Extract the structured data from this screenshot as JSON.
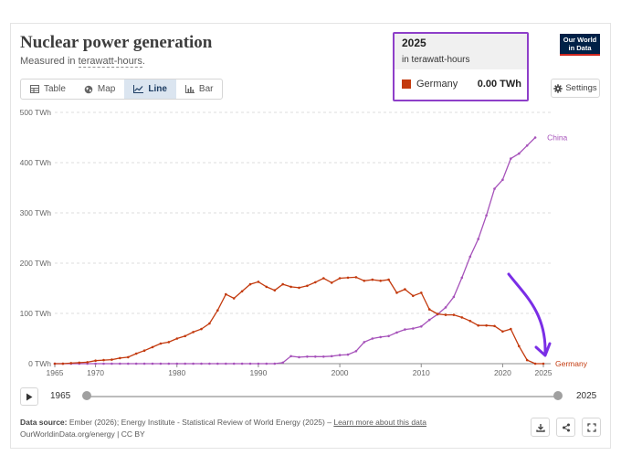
{
  "header": {
    "title": "Nuclear power generation",
    "subtitle_prefix": "Measured in ",
    "subtitle_unit": "terawatt-hours",
    "subtitle_suffix": "."
  },
  "tabs": [
    {
      "label": "Table",
      "icon": "table-icon"
    },
    {
      "label": "Map",
      "icon": "globe-icon"
    },
    {
      "label": "Line",
      "icon": "line-chart-icon"
    },
    {
      "label": "Bar",
      "icon": "bar-chart-icon"
    }
  ],
  "active_tab": "Line",
  "settings_label": "Settings",
  "logo": {
    "line1": "Our World",
    "line2": "in Data"
  },
  "tooltip": {
    "year": "2025",
    "unit": "in terawatt-hours",
    "country": "Germany",
    "value": "0.00 TWh"
  },
  "timeline": {
    "start_label": "1965",
    "end_label": "2025",
    "start": 1965,
    "end": 2025
  },
  "footer": {
    "source_label": "Data source:",
    "source_text": "Ember (2026); Energy Institute - Statistical Review of World Energy (2025) –",
    "source_link": "Learn more about this data",
    "credit": "OurWorldinData.org/energy | CC BY"
  },
  "colors": {
    "germany": "#c33a0e",
    "china": "#a652ba",
    "annotation": "#7a2ee6",
    "grid": "#dddddd"
  },
  "chart_data": {
    "type": "line",
    "title": "Nuclear power generation",
    "ylabel": "terawatt-hours",
    "xlim": [
      1965,
      2025
    ],
    "ylim": [
      0,
      500
    ],
    "yticks": [
      0,
      100,
      200,
      300,
      400,
      500
    ],
    "ytick_labels": [
      "0 TWh",
      "100 TWh",
      "200 TWh",
      "300 TWh",
      "400 TWh",
      "500 TWh"
    ],
    "xticks": [
      1965,
      1970,
      1980,
      1990,
      2000,
      2010,
      2020,
      2025
    ],
    "xtick_labels": [
      "1965",
      "1970",
      "1980",
      "1990",
      "2000",
      "2010",
      "2020",
      "2025"
    ],
    "grid": true,
    "x": [
      1965,
      1966,
      1967,
      1968,
      1969,
      1970,
      1971,
      1972,
      1973,
      1974,
      1975,
      1976,
      1977,
      1978,
      1979,
      1980,
      1981,
      1982,
      1983,
      1984,
      1985,
      1986,
      1987,
      1988,
      1989,
      1990,
      1991,
      1992,
      1993,
      1994,
      1995,
      1996,
      1997,
      1998,
      1999,
      2000,
      2001,
      2002,
      2003,
      2004,
      2005,
      2006,
      2007,
      2008,
      2009,
      2010,
      2011,
      2012,
      2013,
      2014,
      2015,
      2016,
      2017,
      2018,
      2019,
      2020,
      2021,
      2022,
      2023,
      2024,
      2025
    ],
    "series": [
      {
        "name": "Germany",
        "label_end": true,
        "values": [
          0,
          0,
          1,
          2,
          3,
          6,
          7,
          8,
          11,
          13,
          20,
          26,
          33,
          40,
          43,
          50,
          55,
          63,
          69,
          80,
          106,
          138,
          130,
          144,
          158,
          163,
          153,
          146,
          158,
          153,
          151,
          155,
          162,
          170,
          161,
          170,
          171,
          172,
          165,
          167,
          165,
          167,
          141,
          148,
          135,
          141,
          108,
          99,
          97,
          97,
          92,
          85,
          76,
          76,
          75,
          64,
          69,
          35,
          7,
          0,
          0
        ]
      },
      {
        "name": "China",
        "label_end": true,
        "values": [
          0,
          0,
          0,
          0,
          0,
          0,
          0,
          0,
          0,
          0,
          0,
          0,
          0,
          0,
          0,
          0,
          0,
          0,
          0,
          0,
          0,
          0,
          0,
          0,
          0,
          0,
          0,
          0,
          2,
          15,
          13,
          14,
          14,
          14,
          15,
          17,
          18,
          25,
          43,
          50,
          53,
          55,
          62,
          68,
          70,
          74,
          87,
          98,
          112,
          133,
          171,
          213,
          248,
          295,
          348,
          366,
          408,
          418,
          434,
          450,
          null
        ]
      }
    ],
    "annotation": {
      "type": "arrow",
      "target_series": "Germany",
      "target_x": 2025
    }
  }
}
